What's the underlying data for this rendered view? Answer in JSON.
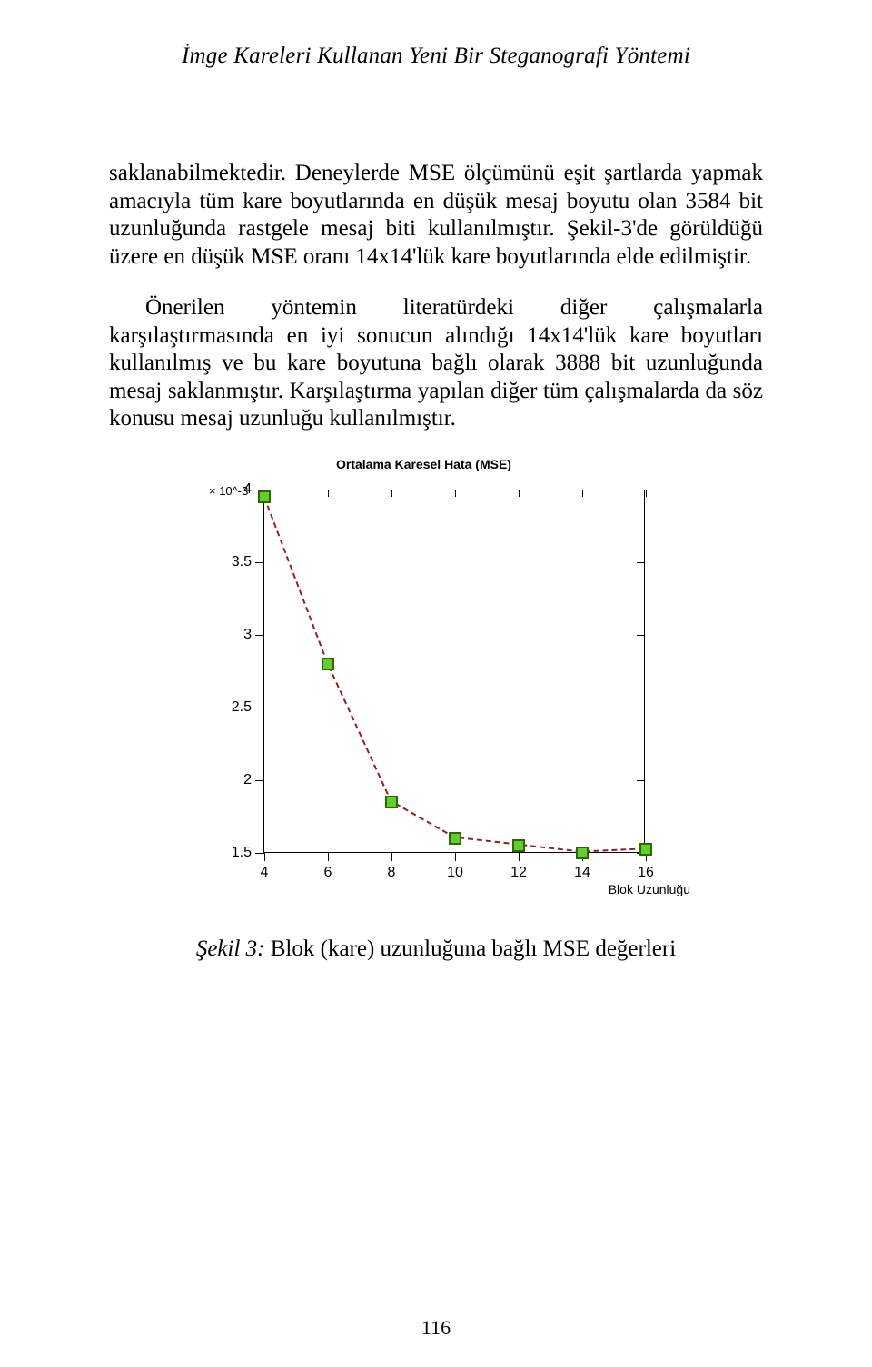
{
  "header": {
    "title": "İmge Kareleri Kullanan Yeni Bir Steganografi Yöntemi"
  },
  "paragraphs": {
    "p1": "saklanabilmektedir. Deneylerde MSE ölçümünü eşit şartlarda yapmak amacıyla tüm kare boyutlarında en düşük mesaj boyutu olan 3584 bit uzunluğunda rastgele mesaj biti kullanılmıştır. Şekil-3'de görüldüğü üzere en düşük MSE oranı 14x14'lük kare boyutlarında elde edilmiştir.",
    "p2": "Önerilen yöntemin literatürdeki diğer çalışmalarla karşılaştırmasında en iyi sonucun alındığı 14x14'lük kare boyutları kullanılmış ve bu kare boyutuna bağlı olarak 3888 bit uzunluğunda mesaj saklanmıştır. Karşılaştırma yapılan diğer tüm çalışmalarda da söz konusu mesaj uzunluğu kullanılmıştır."
  },
  "figure": {
    "caption_label": "Şekil 3:",
    "caption_text": " Blok (kare) uzunluğuna bağlı MSE değerleri"
  },
  "chart": {
    "type": "line",
    "title": "Ortalama Karesel Hata (MSE)",
    "y_multiplier": "× 10^-3",
    "xlabel": "Blok Uzunluğu",
    "x_values": [
      4,
      6,
      8,
      10,
      12,
      14,
      16
    ],
    "y_values": [
      3.95,
      2.8,
      1.85,
      1.6,
      1.55,
      1.5,
      1.52
    ],
    "xlim": [
      4,
      16
    ],
    "ylim": [
      1.5,
      4
    ],
    "xticks": [
      4,
      6,
      8,
      10,
      12,
      14,
      16
    ],
    "yticks": [
      1.5,
      2,
      2.5,
      3,
      3.5,
      4
    ],
    "ytick_labels": [
      "1.5",
      "2",
      "2.5",
      "3",
      "3.5",
      "4"
    ],
    "xtick_labels": [
      "4",
      "6",
      "8",
      "10",
      "12",
      "14",
      "16"
    ],
    "line_color": "#9b1c1c",
    "line_dash": "6,4",
    "line_width": 2,
    "marker_fill": "#66cc33",
    "marker_border": "#2a6b00",
    "marker_size": 14,
    "background_color": "#ffffff",
    "axis_color": "#000000",
    "font_family": "Arial",
    "tick_fontsize": 16,
    "title_fontsize": 14
  },
  "page_number": "116"
}
